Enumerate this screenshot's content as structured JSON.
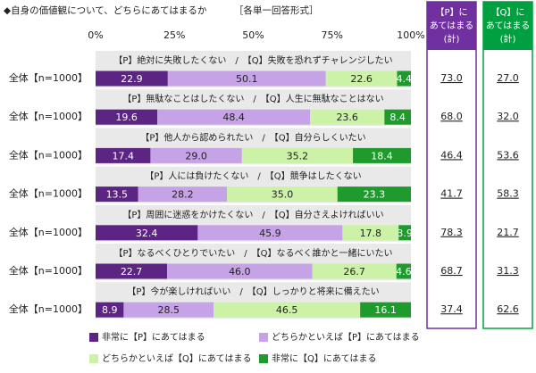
{
  "chart_data": {
    "type": "stacked-bar-h",
    "title": "◆自身の価値観について、どちらにあてはまるか",
    "subtitle": "［各単一回答形式］",
    "categories": [
      "全体【n=1000】",
      "全体【n=1000】",
      "全体【n=1000】",
      "全体【n=1000】",
      "全体【n=1000】",
      "全体【n=1000】",
      "全体【n=1000】"
    ],
    "pair_labels": [
      "【P】絶対に失敗したくない　/　【Q】失敗を恐れずチャレンジしたい",
      "【P】無駄なことはしたくない　/　【Q】人生に無駄なことはない",
      "【P】他人から認められたい　/　【Q】自分らしくいたい",
      "【P】人には負けたくない　/　【Q】競争はしたくない",
      "【P】周囲に迷惑をかけたくない　/　【Q】自分さえよければいい",
      "【P】なるべくひとりでいたい　/　【Q】なるべく誰かと一緒にいたい",
      "【P】今が楽しければいい　/　【Q】しっかりと将来に備えたい"
    ],
    "xlim": [
      0,
      100
    ],
    "xticks": [
      {
        "value": 0,
        "label": "0%"
      },
      {
        "value": 25,
        "label": "25%"
      },
      {
        "value": 50,
        "label": "50%"
      },
      {
        "value": 75,
        "label": "75%"
      },
      {
        "value": 100,
        "label": "100%"
      }
    ],
    "series": [
      {
        "name": "非常に【P】にあてはまる",
        "color": "#5c2483",
        "text_color": "#ffffff",
        "values": [
          22.9,
          19.6,
          17.4,
          13.5,
          32.4,
          22.7,
          8.9
        ],
        "value_labels": [
          "22.9",
          "19.6",
          "17.4",
          "13.5",
          "32.4",
          "22.7",
          "8.9"
        ]
      },
      {
        "name": "どちらかといえば【P】にあてはまる",
        "color": "#c6a3e6",
        "text_color": "#222222",
        "values": [
          50.1,
          48.4,
          29.0,
          28.2,
          45.9,
          46.0,
          28.5
        ],
        "value_labels": [
          "50.1",
          "48.4",
          "29.0",
          "28.2",
          "45.9",
          "46.0",
          "28.5"
        ]
      },
      {
        "name": "どちらかといえば【Q】にあてはまる",
        "color": "#ccf2a8",
        "text_color": "#222222",
        "values": [
          22.6,
          23.6,
          35.2,
          35.0,
          17.8,
          26.7,
          46.5
        ],
        "value_labels": [
          "22.6",
          "23.6",
          "35.2",
          "35.0",
          "17.8",
          "26.7",
          "46.5"
        ]
      },
      {
        "name": "非常に【Q】にあてはまる",
        "color": "#1f9b2e",
        "text_color": "#ffffff",
        "values": [
          4.4,
          8.4,
          18.4,
          23.3,
          3.9,
          4.6,
          16.1
        ],
        "value_labels": [
          "4.4",
          "8.4",
          "18.4",
          "23.3",
          "3.9",
          "4.6",
          "16.1"
        ]
      }
    ],
    "summary_columns": [
      {
        "header_lines": [
          "【P】に",
          "あてはまる",
          "(計)"
        ],
        "color": "#7030a0",
        "values": [
          73.0,
          68.0,
          46.4,
          41.7,
          78.3,
          68.7,
          37.4
        ],
        "value_labels": [
          "73.0",
          "68.0",
          "46.4",
          "41.7",
          "78.3",
          "68.7",
          "37.4"
        ]
      },
      {
        "header_lines": [
          "【Q】に",
          "あてはまる",
          "(計)"
        ],
        "color": "#00a040",
        "values": [
          27.0,
          32.0,
          53.6,
          58.3,
          21.7,
          31.3,
          62.6
        ],
        "value_labels": [
          "27.0",
          "32.0",
          "53.6",
          "58.3",
          "21.7",
          "31.3",
          "62.6"
        ]
      }
    ]
  }
}
